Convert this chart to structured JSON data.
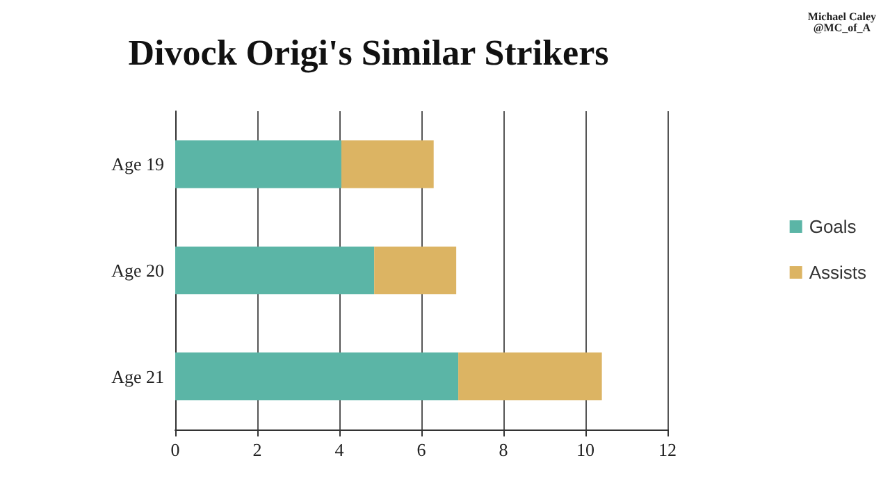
{
  "chart_data": {
    "type": "bar",
    "orientation": "horizontal",
    "stacked": true,
    "title": "Divock Origi's Similar Strikers",
    "annotations": [
      "Michael Caley\n@MC_of_A"
    ],
    "categories": [
      "Age 19",
      "Age 20",
      "Age 21"
    ],
    "series": [
      {
        "name": "Goals",
        "color": "#5bb5a6",
        "values": [
          4.05,
          4.85,
          6.9
        ]
      },
      {
        "name": "Assists",
        "color": "#dcb463",
        "values": [
          2.25,
          2.0,
          3.5
        ]
      }
    ],
    "xlim": [
      0,
      12
    ],
    "xticks": [
      0,
      2,
      4,
      6,
      8,
      10,
      12
    ],
    "grid": "x",
    "legend": "right"
  }
}
